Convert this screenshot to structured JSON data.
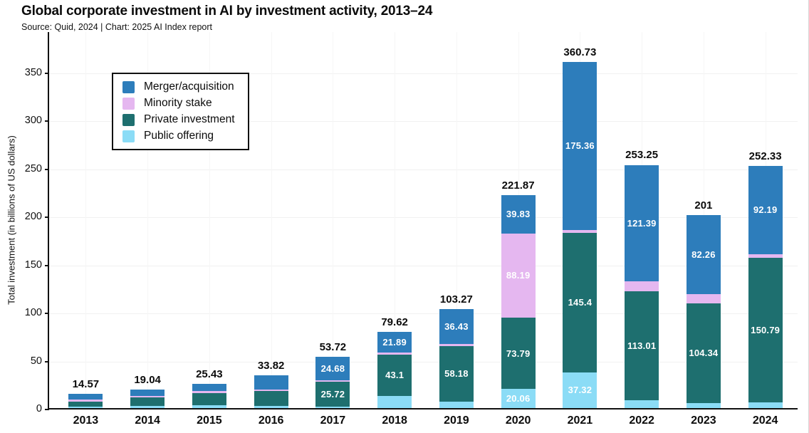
{
  "header": {
    "title": "Global corporate investment in AI by investment activity, 2013–24",
    "source_line": "Source: Quid, 2024 | Chart: 2025 AI Index report"
  },
  "chart_data": {
    "type": "bar",
    "stacked": true,
    "title": "Global corporate investment in AI by investment activity, 2013–24",
    "xlabel": "",
    "ylabel": "Total investment (in billions of US dollars)",
    "ylim": [
      0,
      393
    ],
    "yticks": [
      0,
      50,
      100,
      150,
      200,
      250,
      300,
      350
    ],
    "grid": "faint horizontal and vertical gridlines",
    "legend_position": "top-left inside plot, boxed",
    "legend_order": [
      "Merger/acquisition",
      "Minority stake",
      "Private investment",
      "Public offering"
    ],
    "categories": [
      "2013",
      "2014",
      "2015",
      "2016",
      "2017",
      "2018",
      "2019",
      "2020",
      "2021",
      "2022",
      "2023",
      "2024"
    ],
    "totals": [
      14.57,
      19.04,
      25.43,
      33.82,
      53.72,
      79.62,
      103.27,
      221.87,
      360.73,
      253.25,
      201,
      252.33
    ],
    "total_labels": [
      "14.57",
      "19.04",
      "25.43",
      "33.82",
      "53.72",
      "79.62",
      "103.27",
      "221.87",
      "360.73",
      "253.25",
      "201",
      "252.33"
    ],
    "series": [
      {
        "name": "Public offering",
        "color": "#8bdcf6",
        "values": [
          1.42,
          2.4,
          2.83,
          2.6,
          1.62,
          12.6,
          6.66,
          20.06,
          37.32,
          8.35,
          5.0,
          5.61
        ],
        "labels": [
          "",
          "",
          "",
          "",
          "",
          "",
          "",
          "20.06",
          "37.32",
          "",
          "",
          ""
        ]
      },
      {
        "name": "Private investment",
        "color": "#1e6f6f",
        "values": [
          5.05,
          9.0,
          12.4,
          14.87,
          25.72,
          43.1,
          58.18,
          73.79,
          145.4,
          113.01,
          104.34,
          150.79
        ],
        "labels": [
          "",
          "",
          "",
          "",
          "25.72",
          "43.1",
          "58.18",
          "73.79",
          "145.4",
          "113.01",
          "104.34",
          "150.79"
        ]
      },
      {
        "name": "Minority stake",
        "color": "#e5b7f0",
        "values": [
          2.3,
          1.24,
          2.3,
          1.55,
          1.7,
          2.03,
          2.0,
          88.19,
          2.65,
          10.5,
          9.4,
          3.74
        ],
        "labels": [
          "",
          "",
          "",
          "",
          "",
          "",
          "",
          "88.19",
          "",
          "",
          "",
          ""
        ]
      },
      {
        "name": "Merger/acquisition",
        "color": "#2d7dbb",
        "values": [
          5.8,
          6.4,
          7.9,
          14.8,
          24.68,
          21.89,
          36.43,
          39.83,
          175.36,
          121.39,
          82.26,
          92.19
        ],
        "labels": [
          "",
          "",
          "",
          "",
          "24.68",
          "21.89",
          "36.43",
          "39.83",
          "175.36",
          "121.39",
          "82.26",
          "92.19"
        ]
      }
    ],
    "colors": {
      "merger_acquisition": "#2d7dbb",
      "minority_stake": "#e5b7f0",
      "private_investment": "#1e6f6f",
      "public_offering": "#8bdcf6",
      "axis": "#111111",
      "background": "#ffffff"
    }
  }
}
